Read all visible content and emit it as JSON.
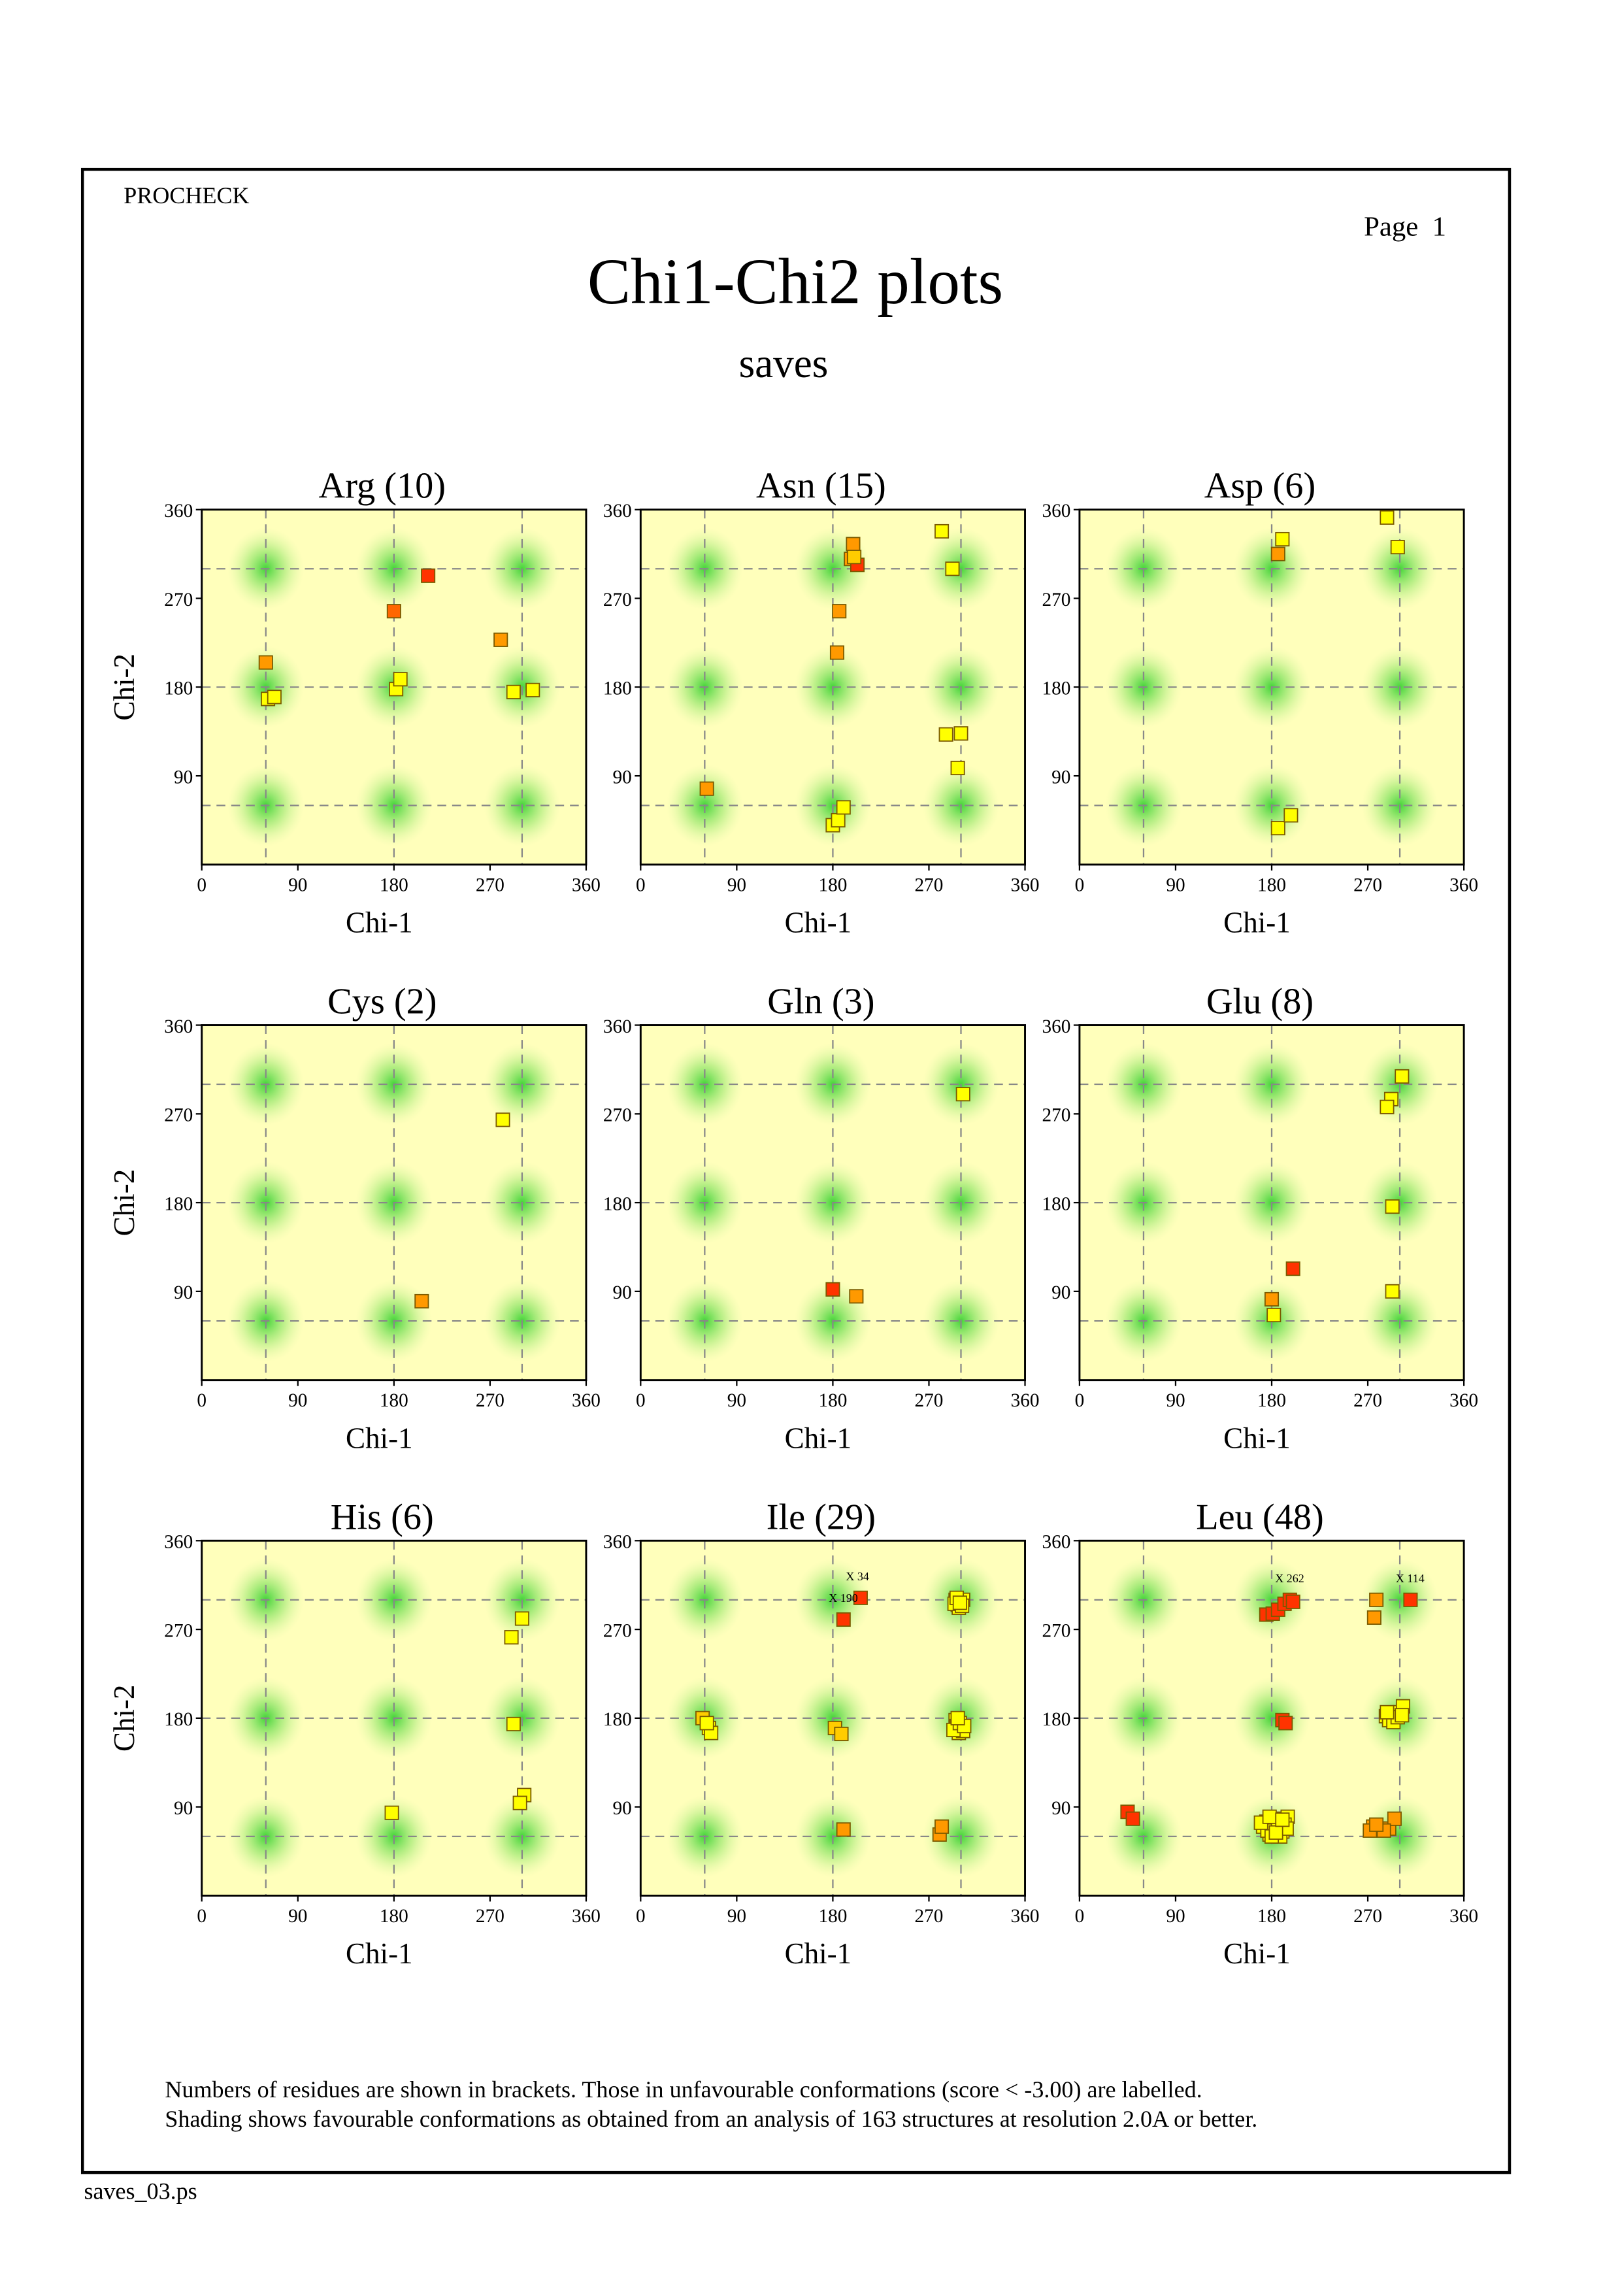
{
  "header": {
    "program": "PROCHECK",
    "page": "Page  1",
    "title": "Chi1-Chi2 plots",
    "subtitle": "saves"
  },
  "notes": [
    "Numbers of residues are shown in brackets. Those in unfavourable conformations (score < -3.00) are labelled.",
    "Shading shows favourable conformations as obtained from an analysis of 163 structures at resolution 2.0A or better."
  ],
  "footer": "saves_03.ps",
  "chart_data": [
    {
      "type": "scatter",
      "title": "Arg (10)",
      "x_label": "Chi-1",
      "y_label": "Chi-2",
      "xlim": [
        0,
        360
      ],
      "ylim": [
        0,
        360
      ],
      "xticks": [
        0,
        90,
        180,
        270,
        360
      ],
      "yticks": [
        90,
        180,
        270,
        360
      ],
      "guides": [
        60,
        180,
        300
      ],
      "x": [
        60,
        62,
        68,
        182,
        186,
        180,
        212,
        280,
        292,
        310
      ],
      "values": [
        205,
        168,
        170,
        178,
        188,
        257,
        293,
        228,
        175,
        177
      ],
      "colors": [
        "#ff9900",
        "#ffff00",
        "#ffff00",
        "#ffff00",
        "#ffff00",
        "#ff6600",
        "#ff3300",
        "#ff9900",
        "#ffff00",
        "#ffff00"
      ]
    },
    {
      "type": "scatter",
      "title": "Asn (15)",
      "x_label": "Chi-1",
      "xlim": [
        0,
        360
      ],
      "ylim": [
        0,
        360
      ],
      "xticks": [
        0,
        90,
        180,
        270,
        360
      ],
      "yticks": [
        90,
        180,
        270,
        360
      ],
      "guides": [
        60,
        180,
        300
      ],
      "x": [
        62,
        180,
        185,
        190,
        186,
        184,
        199,
        197,
        203,
        200,
        282,
        292,
        286,
        300,
        297
      ],
      "values": [
        77,
        40,
        45,
        58,
        257,
        215,
        325,
        310,
        304,
        312,
        338,
        300,
        132,
        133,
        98
      ],
      "colors": [
        "#ff9900",
        "#ffff00",
        "#ffff00",
        "#ffff00",
        "#ff9900",
        "#ff9900",
        "#ff9900",
        "#ff9900",
        "#ff3300",
        "#ffcc00",
        "#ffff00",
        "#ffff00",
        "#ffff00",
        "#ffff00",
        "#ffff00"
      ]
    },
    {
      "type": "scatter",
      "title": "Asp (6)",
      "x_label": "Chi-1",
      "xlim": [
        0,
        360
      ],
      "ylim": [
        0,
        360
      ],
      "xticks": [
        0,
        90,
        180,
        270,
        360
      ],
      "yticks": [
        90,
        180,
        270,
        360
      ],
      "guides": [
        60,
        180,
        300
      ],
      "x": [
        186,
        198,
        190,
        186,
        288,
        298
      ],
      "values": [
        37,
        50,
        330,
        315,
        352,
        322
      ],
      "colors": [
        "#ffff00",
        "#ffff00",
        "#ffff00",
        "#ff9900",
        "#ffff00",
        "#ffff00"
      ]
    },
    {
      "type": "scatter",
      "title": "Cys (2)",
      "x_label": "Chi-1",
      "y_label": "Chi-2",
      "xlim": [
        0,
        360
      ],
      "ylim": [
        0,
        360
      ],
      "xticks": [
        0,
        90,
        180,
        270,
        360
      ],
      "yticks": [
        90,
        180,
        270,
        360
      ],
      "guides": [
        60,
        180,
        300
      ],
      "x": [
        282,
        206
      ],
      "values": [
        264,
        80
      ],
      "colors": [
        "#ffff00",
        "#ff9900"
      ]
    },
    {
      "type": "scatter",
      "title": "Gln (3)",
      "x_label": "Chi-1",
      "xlim": [
        0,
        360
      ],
      "ylim": [
        0,
        360
      ],
      "xticks": [
        0,
        90,
        180,
        270,
        360
      ],
      "yticks": [
        90,
        180,
        270,
        360
      ],
      "guides": [
        60,
        180,
        300
      ],
      "x": [
        302,
        180,
        202
      ],
      "values": [
        290,
        92,
        85
      ],
      "colors": [
        "#ffff00",
        "#ff3300",
        "#ff9900"
      ]
    },
    {
      "type": "scatter",
      "title": "Glu (8)",
      "x_label": "Chi-1",
      "xlim": [
        0,
        360
      ],
      "ylim": [
        0,
        360
      ],
      "xticks": [
        0,
        90,
        180,
        270,
        360
      ],
      "yticks": [
        90,
        180,
        270,
        360
      ],
      "guides": [
        60,
        180,
        300
      ],
      "x": [
        302,
        292,
        288,
        293,
        200,
        180,
        182,
        293
      ],
      "values": [
        308,
        285,
        277,
        176,
        113,
        82,
        66,
        90
      ],
      "colors": [
        "#ffff00",
        "#ffff00",
        "#ffff00",
        "#ffff00",
        "#ff3300",
        "#ff9900",
        "#ffff00",
        "#ffff00"
      ]
    },
    {
      "type": "scatter",
      "title": "His (6)",
      "x_label": "Chi-1",
      "y_label": "Chi-2",
      "xlim": [
        0,
        360
      ],
      "ylim": [
        0,
        360
      ],
      "xticks": [
        0,
        90,
        180,
        270,
        360
      ],
      "yticks": [
        90,
        180,
        270,
        360
      ],
      "guides": [
        60,
        180,
        300
      ],
      "x": [
        300,
        290,
        292,
        302,
        298,
        178
      ],
      "values": [
        281,
        262,
        174,
        102,
        94,
        84
      ],
      "colors": [
        "#ffff00",
        "#ffff00",
        "#ffff00",
        "#ffff00",
        "#ffff00",
        "#ffff00"
      ]
    },
    {
      "type": "scatter",
      "title": "Ile (29)",
      "x_label": "Chi-1",
      "xlim": [
        0,
        360
      ],
      "ylim": [
        0,
        360
      ],
      "xticks": [
        0,
        90,
        180,
        270,
        360
      ],
      "yticks": [
        90,
        180,
        270,
        360
      ],
      "guides": [
        60,
        180,
        300
      ],
      "x": [
        206,
        190,
        190,
        280,
        282,
        58,
        182,
        188,
        64,
        66,
        62,
        295,
        300,
        298,
        302,
        296,
        293,
        299,
        303,
        297,
        295,
        300,
        297,
        302,
        298,
        294,
        301,
        296,
        299
      ],
      "values": [
        302,
        280,
        67,
        62,
        70,
        180,
        170,
        164,
        170,
        165,
        175,
        178,
        170,
        165,
        167,
        172,
        168,
        175,
        172,
        180,
        300,
        298,
        295,
        300,
        292,
        296,
        294,
        302,
        297
      ],
      "colors": [
        "#ff3300",
        "#ff3300",
        "#ff9900",
        "#ff9900",
        "#ff9900",
        "#ffcc00",
        "#ffcc00",
        "#ffcc00",
        "#ffff00",
        "#ffff00",
        "#ffff00",
        "#ffff00",
        "#ffff00",
        "#ffff00",
        "#ffff00",
        "#ffff00",
        "#ffff00",
        "#ffff00",
        "#ffff00",
        "#ffff00",
        "#ffff00",
        "#ffff00",
        "#ffff00",
        "#ffff00",
        "#ffff00",
        "#ffff00",
        "#ffff00",
        "#ffff00",
        "#ffff00"
      ],
      "point_labels": [
        "X 34",
        "X 190",
        null,
        null,
        null,
        null,
        null,
        null,
        null,
        null,
        null,
        null,
        null,
        null,
        null,
        null,
        null,
        null,
        null,
        null,
        null,
        null,
        null,
        null,
        null,
        null,
        null,
        null,
        null
      ]
    },
    {
      "type": "scatter",
      "title": "Leu (48)",
      "x_label": "Chi-1",
      "xlim": [
        0,
        360
      ],
      "ylim": [
        0,
        360
      ],
      "xticks": [
        0,
        90,
        180,
        270,
        360
      ],
      "yticks": [
        90,
        180,
        270,
        360
      ],
      "guides": [
        60,
        180,
        300
      ],
      "x": [
        45,
        50,
        175,
        181,
        186,
        192,
        197,
        200,
        310,
        190,
        193,
        278,
        276,
        275,
        280,
        290,
        295,
        285,
        272,
        278,
        287,
        292,
        296,
        300,
        303,
        290,
        294,
        298,
        288,
        302,
        175,
        180,
        185,
        190,
        195,
        178,
        188,
        172,
        182,
        192,
        176,
        186,
        180,
        194,
        170,
        184,
        178,
        190
      ],
      "values": [
        85,
        78,
        285,
        286,
        290,
        296,
        300,
        298,
        300,
        178,
        175,
        300,
        282,
        70,
        68,
        68,
        78,
        66,
        66,
        72,
        182,
        180,
        185,
        186,
        192,
        178,
        176,
        181,
        186,
        183,
        75,
        70,
        68,
        65,
        80,
        62,
        60,
        70,
        78,
        72,
        66,
        74,
        60,
        68,
        74,
        64,
        80,
        77
      ],
      "colors": [
        "#ff3300",
        "#ff3300",
        "#ff3300",
        "#ff3300",
        "#ff3300",
        "#ff3300",
        "#ff3300",
        "#ff3300",
        "#ff3300",
        "#ff3300",
        "#ff3300",
        "#ff9900",
        "#ff9900",
        "#ff9900",
        "#ff9900",
        "#ff9900",
        "#ff9900",
        "#ff9900",
        "#ff9900",
        "#ff9900",
        "#ffff00",
        "#ffff00",
        "#ffff00",
        "#ffff00",
        "#ffff00",
        "#ffff00",
        "#ffff00",
        "#ffff00",
        "#ffff00",
        "#ffff00",
        "#ffff00",
        "#ffff00",
        "#ffff00",
        "#ffff00",
        "#ffff00",
        "#ffff00",
        "#ffff00",
        "#ffff00",
        "#ffff00",
        "#ffff00",
        "#ffff00",
        "#ffff00",
        "#ffff00",
        "#ffff00",
        "#ffff00",
        "#ffff00",
        "#ffff00",
        "#ffff00"
      ],
      "point_labels": [
        null,
        null,
        null,
        null,
        null,
        null,
        "X 262",
        null,
        "X 114",
        null,
        null,
        null,
        null,
        null,
        null,
        null,
        null,
        null,
        null,
        null,
        null,
        null,
        null,
        null,
        null,
        null,
        null,
        null,
        null,
        null,
        null,
        null,
        null,
        null,
        null,
        null,
        null,
        null,
        null,
        null,
        null,
        null,
        null,
        null,
        null,
        null,
        null,
        null
      ]
    }
  ]
}
